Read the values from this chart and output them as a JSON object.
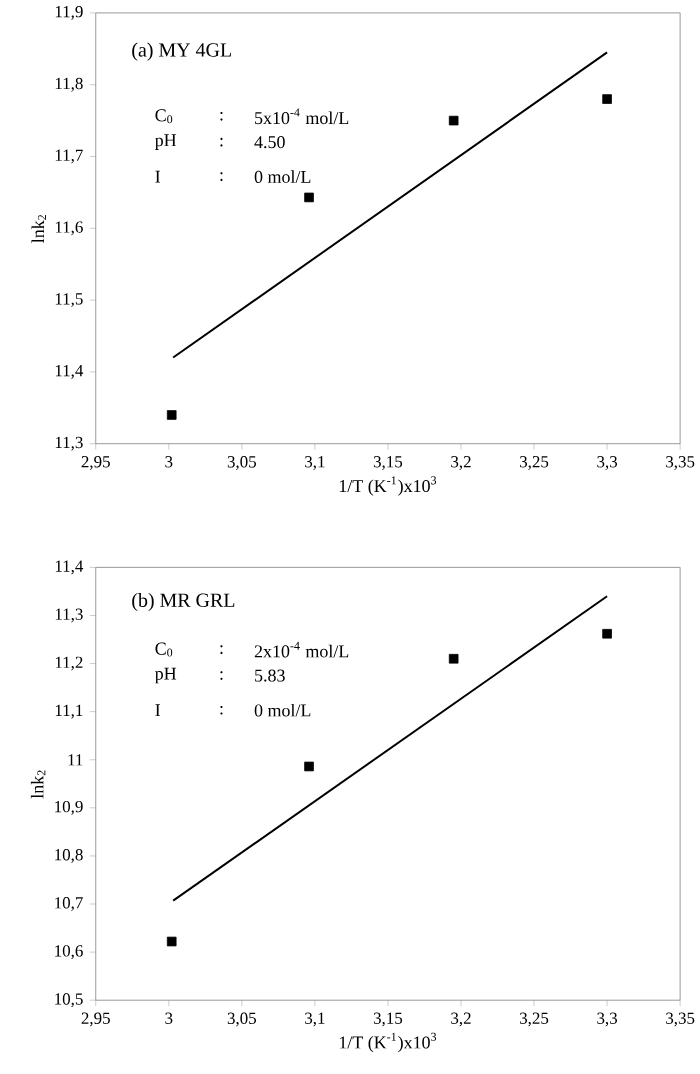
{
  "chart_data": [
    {
      "type": "scatter",
      "xlabel": "1/T (K$^{-1}$)x10$^{3}$",
      "ylabel": "lnk$_{2}$",
      "annotations": [
        "(a)  MY 4GL",
        "C$_{0}$",
        ":",
        "5x10$^{-4}$ mol/L",
        "pH",
        ":",
        "4.50",
        "I",
        ":",
        "0 mol/L"
      ],
      "xlim": [
        2.95,
        3.35
      ],
      "ylim": [
        11.3,
        11.9
      ],
      "xticks": [
        {
          "value": 2.95,
          "label": "2,95"
        },
        3,
        {
          "value": 3.05,
          "label": "3,05"
        },
        {
          "value": 3.1,
          "label": "3,1"
        },
        {
          "value": 3.15,
          "label": "3,15"
        },
        {
          "value": 3.2,
          "label": "3,2"
        },
        {
          "value": 3.25,
          "label": "3,25"
        },
        {
          "value": 3.3,
          "label": "3,3"
        },
        {
          "value": 3.35,
          "label": "3,35"
        }
      ],
      "yticks": [
        {
          "value": 11.3,
          "label": "11,3"
        },
        {
          "value": 11.4,
          "label": "11,4"
        },
        {
          "value": 11.5,
          "label": "11,5"
        },
        {
          "value": 11.6,
          "label": "11,6"
        },
        {
          "value": 11.7,
          "label": "11,7"
        },
        {
          "value": 11.8,
          "label": "11,8"
        },
        {
          "value": 11.9,
          "label": "11,9"
        }
      ],
      "series": [
        {
          "color": "#000000",
          "marker": "square",
          "x": [
            3.002,
            3.096,
            3.195,
            3.3
          ],
          "values": [
            11.34,
            11.643,
            11.75,
            11.78
          ]
        },
        {
          "type": "line",
          "color": "#000000",
          "marker": "none",
          "line_style": "solid",
          "x": [
            3.003,
            3.3
          ],
          "values": [
            11.42,
            11.845
          ]
        }
      ]
    },
    {
      "type": "scatter",
      "xlabel": "1/T (K$^{-1}$)x10$^{3}$",
      "ylabel": "lnk$_{2}$",
      "annotations": [
        "(b) MR GRL",
        "C$_{0}$",
        ":",
        "2x10$^{-4}$ mol/L",
        "pH",
        ":",
        "5.83",
        "I",
        ":",
        "0 mol/L"
      ],
      "xlim": [
        2.95,
        3.35
      ],
      "ylim": [
        10.5,
        11.4
      ],
      "xticks": [
        {
          "value": 2.95,
          "label": "2,95"
        },
        3,
        {
          "value": 3.05,
          "label": "3,05"
        },
        {
          "value": 3.1,
          "label": "3,1"
        },
        {
          "value": 3.15,
          "label": "3,15"
        },
        {
          "value": 3.2,
          "label": "3,2"
        },
        {
          "value": 3.25,
          "label": "3,25"
        },
        {
          "value": 3.3,
          "label": "3,3"
        },
        {
          "value": 3.35,
          "label": "3,35"
        }
      ],
      "yticks": [
        {
          "value": 10.5,
          "label": "10,5"
        },
        {
          "value": 10.6,
          "label": "10,6"
        },
        {
          "value": 10.7,
          "label": "10,7"
        },
        {
          "value": 10.8,
          "label": "10,8"
        },
        {
          "value": 10.9,
          "label": "10,9"
        },
        11,
        {
          "value": 11.1,
          "label": "11,1"
        },
        {
          "value": 11.2,
          "label": "11,2"
        },
        {
          "value": 11.3,
          "label": "11,3"
        },
        {
          "value": 11.4,
          "label": "11,4"
        }
      ],
      "series": [
        {
          "color": "#000000",
          "marker": "square",
          "x": [
            3.002,
            3.096,
            3.195,
            3.3
          ],
          "values": [
            10.622,
            10.986,
            11.21,
            11.262
          ]
        },
        {
          "type": "line",
          "color": "#000000",
          "marker": "none",
          "line_style": "solid",
          "x": [
            3.003,
            3.3
          ],
          "values": [
            10.707,
            11.34
          ]
        }
      ]
    }
  ]
}
